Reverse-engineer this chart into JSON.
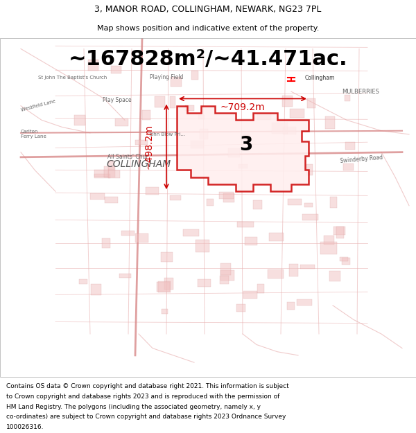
{
  "title_line1": "3, MANOR ROAD, COLLINGHAM, NEWARK, NG23 7PL",
  "title_line2": "Map shows position and indicative extent of the property.",
  "area_text": "~167828m²/~41.471ac.",
  "footer_lines": [
    "Contains OS data © Crown copyright and database right 2021. This information is subject",
    "to Crown copyright and database rights 2023 and is reproduced with the permission of",
    "HM Land Registry. The polygons (including the associated geometry, namely x, y",
    "co-ordinates) are subject to Crown copyright and database rights 2023 Ordnance Survey",
    "100026316."
  ],
  "map_bg": "#faf7f7",
  "road_color": "#e8a0a0",
  "highlight_color": "#cc0000",
  "fig_width": 6.0,
  "fig_height": 6.25,
  "title_fontsize": 9,
  "subtitle_fontsize": 8,
  "area_fontsize": 22,
  "footer_fontsize": 6.5,
  "dim_color": "#cc0000",
  "dim_fontsize": 10,
  "label_3_fontsize": 20,
  "collingham_fontsize": 10,
  "dim_width_text": "~709.2m",
  "dim_height_text": "~498.2m"
}
